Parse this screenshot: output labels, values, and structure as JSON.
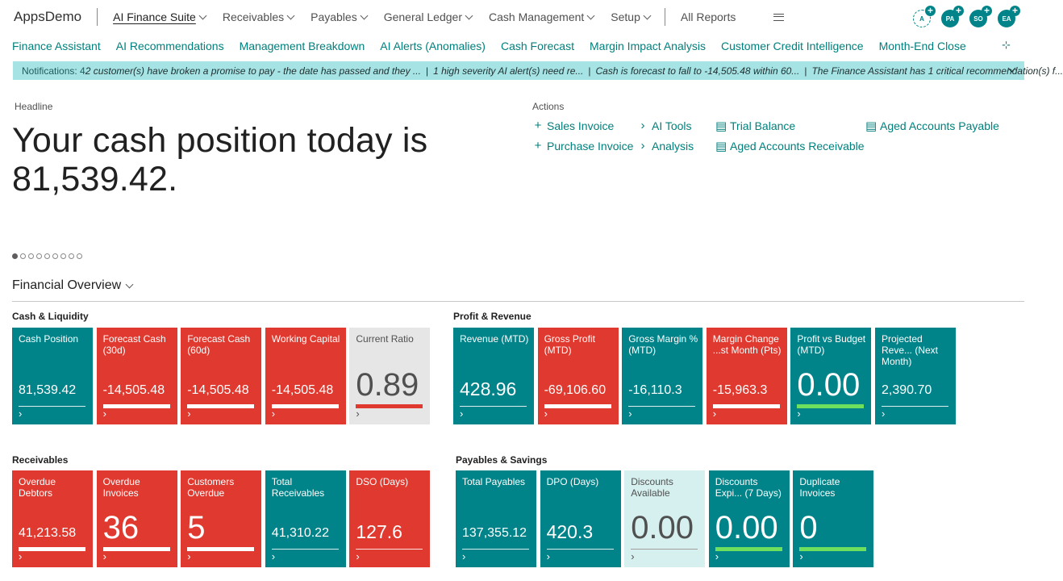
{
  "app": {
    "name": "AppsDemo"
  },
  "menu": {
    "items": [
      {
        "label": "AI Finance Suite",
        "has_dropdown": true,
        "active": true
      },
      {
        "label": "Receivables",
        "has_dropdown": true
      },
      {
        "label": "Payables",
        "has_dropdown": true
      },
      {
        "label": "General Ledger",
        "has_dropdown": true
      },
      {
        "label": "Cash Management",
        "has_dropdown": true
      },
      {
        "label": "Setup",
        "has_dropdown": true
      }
    ],
    "all_reports": "All Reports",
    "more_icon": "hamburger-icon"
  },
  "avatars": [
    {
      "initials": "A",
      "style": "outline"
    },
    {
      "initials": "PA",
      "style": "filled"
    },
    {
      "initials": "SO",
      "style": "filled"
    },
    {
      "initials": "EA",
      "style": "filled"
    }
  ],
  "subnav": {
    "items": [
      "Finance Assistant",
      "AI Recommendations",
      "Management Breakdown",
      "AI Alerts (Anomalies)",
      "Cash Forecast",
      "Margin Impact Analysis",
      "Customer Credit Intelligence",
      "Month-End Close"
    ]
  },
  "notifications": {
    "label": "Notifications: 4",
    "messages": [
      "2 customer(s) have broken a promise to pay - the date has passed and they ...",
      "1 high severity AI alert(s) need re...",
      "Cash is forecast to fall to -14,505.48 within 60...",
      "The Finance Assistant has 1 critical recommendation(s) f..."
    ]
  },
  "headline": {
    "label": "Headline",
    "text": "Your cash position today is 81,539.42."
  },
  "actions": {
    "label": "Actions",
    "items": [
      {
        "label": "Sales Invoice",
        "icon": "plus-icon"
      },
      {
        "label": "Purchase Invoice",
        "icon": "plus-icon"
      },
      {
        "label": "AI Tools",
        "icon": "chevron-right-icon"
      },
      {
        "label": "Analysis",
        "icon": "chevron-right-icon"
      },
      {
        "label": "Trial Balance",
        "icon": "report-icon"
      },
      {
        "label": "Aged Accounts Receivable",
        "icon": "report-icon"
      },
      {
        "label": "Aged Accounts Payable",
        "icon": "report-icon"
      }
    ]
  },
  "overview": {
    "title": "Financial Overview",
    "groups": [
      {
        "title": "Cash & Liquidity",
        "tiles": [
          {
            "name": "Cash Position",
            "value": "81,539.42",
            "style": "teal",
            "size": "normal"
          },
          {
            "name": "Forecast Cash (30d)",
            "value": "-14,505.48",
            "style": "red",
            "size": "normal"
          },
          {
            "name": "Forecast Cash (60d)",
            "value": "-14,505.48",
            "style": "red",
            "size": "normal"
          },
          {
            "name": "Working Capital",
            "value": "-14,505.48",
            "style": "red",
            "size": "normal"
          },
          {
            "name": "Current Ratio",
            "value": "0.89",
            "style": "gray",
            "size": "big"
          }
        ]
      },
      {
        "title": "Profit & Revenue",
        "tiles": [
          {
            "name": "Revenue (MTD)",
            "value": "428.96",
            "style": "teal",
            "size": "medium"
          },
          {
            "name": "Gross Profit (MTD)",
            "value": "-69,106.60",
            "style": "red",
            "size": "normal"
          },
          {
            "name": "Gross Margin % (MTD)",
            "value": "-16,110.3",
            "style": "teal",
            "size": "normal"
          },
          {
            "name": "Margin Change ...st Month (Pts)",
            "value": "-15,963.3",
            "style": "red",
            "size": "normal"
          },
          {
            "name": "Profit vs Budget (MTD)",
            "value": "0.00",
            "style": "teal",
            "size": "big"
          },
          {
            "name": "Projected Reve... (Next Month)",
            "value": "2,390.70",
            "style": "teal",
            "size": "normal"
          }
        ]
      },
      {
        "title": "Receivables",
        "tiles": [
          {
            "name": "Overdue Debtors",
            "value": "41,213.58",
            "style": "red",
            "size": "normal"
          },
          {
            "name": "Overdue Invoices",
            "value": "36",
            "style": "red",
            "size": "big"
          },
          {
            "name": "Customers Overdue",
            "value": "5",
            "style": "red",
            "size": "big"
          },
          {
            "name": "Total Receivables",
            "value": "41,310.22",
            "style": "teal",
            "size": "normal"
          },
          {
            "name": "DSO (Days)",
            "value": "127.6",
            "style": "red",
            "size": "medium"
          }
        ]
      },
      {
        "title": "Payables & Savings",
        "tiles": [
          {
            "name": "Total Payables",
            "value": "137,355.12",
            "style": "teal",
            "size": "normal"
          },
          {
            "name": "DPO (Days)",
            "value": "420.3",
            "style": "teal",
            "size": "medium"
          },
          {
            "name": "Discounts Available",
            "value": "0.00",
            "style": "lightteal",
            "size": "big"
          },
          {
            "name": "Discounts Expi... (7 Days)",
            "value": "0.00",
            "style": "teal",
            "size": "big"
          },
          {
            "name": "Duplicate Invoices",
            "value": "0",
            "style": "teal",
            "size": "big"
          }
        ]
      }
    ]
  },
  "colors": {
    "teal": "#008489",
    "red": "#e0392f",
    "notification_bg": "#a6e3e4",
    "accent_text": "#00807d",
    "success_bar": "#6fe05d"
  }
}
